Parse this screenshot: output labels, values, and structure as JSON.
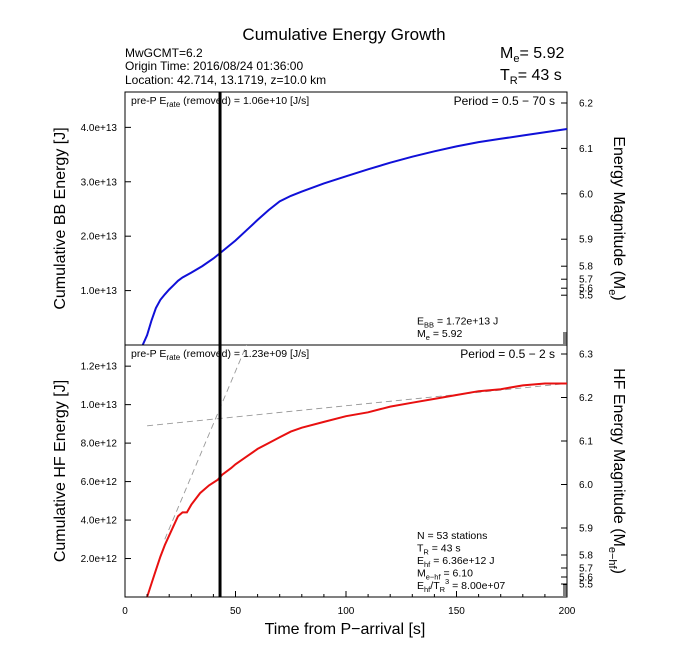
{
  "title": "Cumulative Energy Growth",
  "event": {
    "mw": "MwGCMT=6.2",
    "origin_time": "Origin Time: 2016/08/24 01:36:00",
    "location": "Location: 42.714, 13.1719, z=10.0 km"
  },
  "summary": {
    "me_label": "M",
    "me_sub": "e",
    "me_value": "= 5.92",
    "tr_label": "T",
    "tr_sub": "R",
    "tr_value": "= 43 s"
  },
  "chart_data": [
    {
      "id": "bb",
      "type": "line",
      "ylabel": "Cumulative BB Energy [J]",
      "ylabel_right": "Energy Magnitude (M",
      "ylabel_right_sub": "e",
      "ylabel_right_end": ")",
      "ylim": [
        0,
        46500000000000
      ],
      "yticks": [
        {
          "value": 10000000000000,
          "label": "1.0e+13"
        },
        {
          "value": 20000000000000,
          "label": "2.0e+13"
        },
        {
          "value": 30000000000000,
          "label": "3.0e+13"
        },
        {
          "value": 40000000000000,
          "label": "4.0e+13"
        }
      ],
      "right_ticks": [
        "6.2",
        "6.1",
        "6.0",
        "5.9",
        "5.8",
        "5.7",
        "5.6",
        "5.5"
      ],
      "pre_p_label": "pre-P E",
      "pre_p_sub": "rate",
      "pre_p_value": " (removed) = 1.06e+10 [J/s]",
      "period": "Period = 0.5 − 70 s",
      "annotations": [
        {
          "main": "E",
          "sub": "BB",
          "rest": " = 1.72e+13 J"
        },
        {
          "main": "M",
          "sub": "e",
          "rest": " = 5.92"
        }
      ],
      "series": [
        {
          "color": "#1010d8",
          "points": [
            [
              8,
              0
            ],
            [
              10,
              1800000000000
            ],
            [
              12,
              4500000000000
            ],
            [
              14,
              6800000000000
            ],
            [
              16,
              8300000000000
            ],
            [
              18,
              9300000000000
            ],
            [
              20,
              10200000000000
            ],
            [
              22,
              11000000000000
            ],
            [
              24,
              11800000000000
            ],
            [
              26,
              12400000000000
            ],
            [
              30,
              13300000000000
            ],
            [
              35,
              14500000000000
            ],
            [
              40,
              15900000000000
            ],
            [
              44,
              17200000000000
            ],
            [
              50,
              19200000000000
            ],
            [
              55,
              21100000000000
            ],
            [
              60,
              23000000000000
            ],
            [
              65,
              24800000000000
            ],
            [
              70,
              26400000000000
            ],
            [
              75,
              27400000000000
            ],
            [
              80,
              28200000000000
            ],
            [
              90,
              29700000000000
            ],
            [
              100,
              31000000000000
            ],
            [
              110,
              32300000000000
            ],
            [
              120,
              33500000000000
            ],
            [
              130,
              34600000000000
            ],
            [
              140,
              35600000000000
            ],
            [
              150,
              36500000000000
            ],
            [
              160,
              37300000000000
            ],
            [
              170,
              37900000000000
            ],
            [
              180,
              38500000000000
            ],
            [
              190,
              39100000000000
            ],
            [
              200,
              39700000000000
            ]
          ]
        }
      ]
    },
    {
      "id": "hf",
      "type": "line",
      "ylabel": "Cumulative HF Energy [J]",
      "ylabel_right": "HF Energy Magnitude (M",
      "ylabel_right_sub": "e−hf",
      "ylabel_right_end": ")",
      "ylim": [
        0,
        13100000000000
      ],
      "yticks": [
        {
          "value": 2000000000000,
          "label": "2.0e+12"
        },
        {
          "value": 4000000000000,
          "label": "4.0e+12"
        },
        {
          "value": 6000000000000,
          "label": "6.0e+12"
        },
        {
          "value": 8000000000000,
          "label": "8.0e+12"
        },
        {
          "value": 10000000000000,
          "label": "1.0e+13"
        },
        {
          "value": 12000000000000,
          "label": "1.2e+13"
        }
      ],
      "right_ticks": [
        "6.3",
        "6.2",
        "6.1",
        "6.0",
        "5.9",
        "5.8",
        "5.7",
        "5.6",
        "5.5"
      ],
      "pre_p_label": "pre-P E",
      "pre_p_sub": "rate",
      "pre_p_value": " (removed) = 1.23e+09 [J/s]",
      "period": "Period = 0.5 − 2 s",
      "annotations": [
        {
          "main": "N = 53 stations",
          "sub": "",
          "rest": ""
        },
        {
          "main": "T",
          "sub": "R",
          "rest": " = 43  s"
        },
        {
          "main": "E",
          "sub": "hf",
          "rest": " = 6.36e+12 J"
        },
        {
          "main": "M",
          "sub": "e−hf",
          "rest": " = 6.10"
        },
        {
          "main": "E",
          "sub": "hf",
          "rest": "/T",
          "sub2": "R",
          "sup": "3",
          "rest2": " =  8.00e+07"
        }
      ],
      "fit_lines": [
        [
          [
            10,
            8900000000000
          ],
          [
            200,
            11100000000000
          ]
        ],
        [
          [
            18,
            3000000000000
          ],
          [
            55,
            13100000000000
          ]
        ]
      ],
      "series": [
        {
          "color": "#e81010",
          "points": [
            [
              10,
              0
            ],
            [
              12,
              700000000000
            ],
            [
              14,
              1400000000000
            ],
            [
              16,
              2100000000000
            ],
            [
              18,
              2700000000000
            ],
            [
              20,
              3200000000000
            ],
            [
              22,
              3700000000000
            ],
            [
              24,
              4200000000000
            ],
            [
              26,
              4400000000000
            ],
            [
              28,
              4400000000000
            ],
            [
              30,
              4800000000000
            ],
            [
              34,
              5400000000000
            ],
            [
              38,
              5800000000000
            ],
            [
              42,
              6100000000000
            ],
            [
              44,
              6360000000000
            ],
            [
              48,
              6700000000000
            ],
            [
              50,
              6900000000000
            ],
            [
              55,
              7300000000000
            ],
            [
              60,
              7700000000000
            ],
            [
              65,
              8000000000000
            ],
            [
              70,
              8300000000000
            ],
            [
              75,
              8600000000000
            ],
            [
              80,
              8800000000000
            ],
            [
              90,
              9100000000000
            ],
            [
              100,
              9400000000000
            ],
            [
              110,
              9600000000000
            ],
            [
              120,
              9900000000000
            ],
            [
              130,
              10100000000000
            ],
            [
              140,
              10300000000000
            ],
            [
              150,
              10500000000000
            ],
            [
              160,
              10700000000000
            ],
            [
              170,
              10800000000000
            ],
            [
              180,
              11000000000000
            ],
            [
              190,
              11100000000000
            ],
            [
              200,
              11100000000000
            ]
          ]
        }
      ]
    }
  ],
  "x_axis": {
    "label": "Time from P−arrival [s]",
    "xlim": [
      0,
      200
    ],
    "ticks": [
      {
        "value": 0,
        "label": "0"
      },
      {
        "value": 50,
        "label": "50"
      },
      {
        "value": 100,
        "label": "100"
      },
      {
        "value": 150,
        "label": "150"
      },
      {
        "value": 200,
        "label": "200"
      }
    ]
  },
  "marker_x": 43
}
